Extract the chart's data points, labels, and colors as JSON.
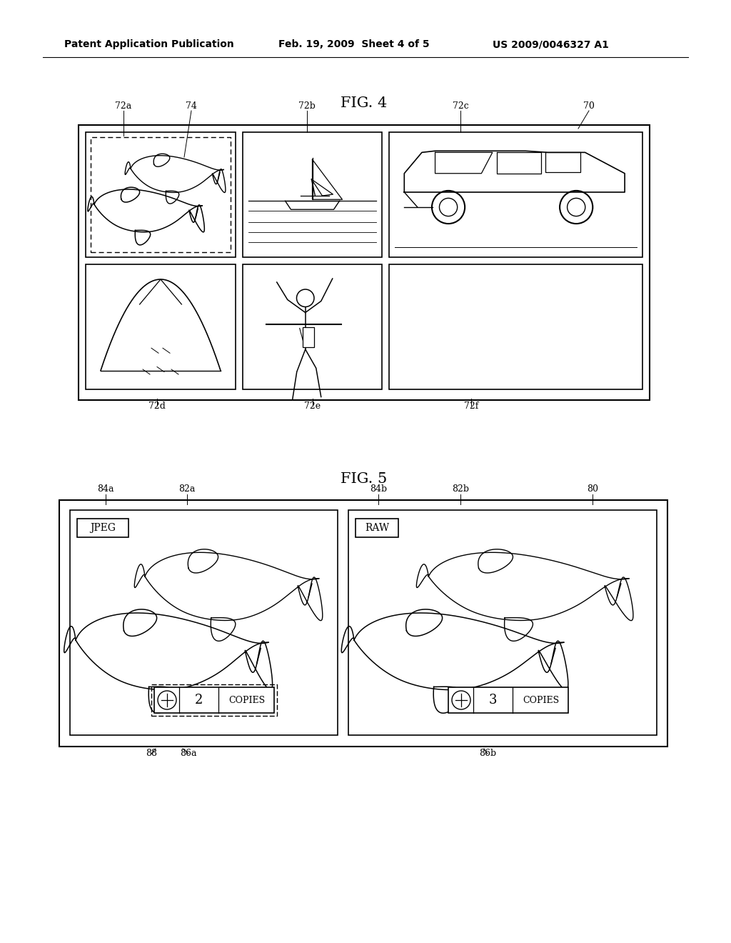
{
  "bg_color": "#ffffff",
  "header_left": "Patent Application Publication",
  "header_mid": "Feb. 19, 2009  Sheet 4 of 5",
  "header_right": "US 2009/0046327 A1",
  "fig4_title": "FIG. 4",
  "fig5_title": "FIG. 5"
}
